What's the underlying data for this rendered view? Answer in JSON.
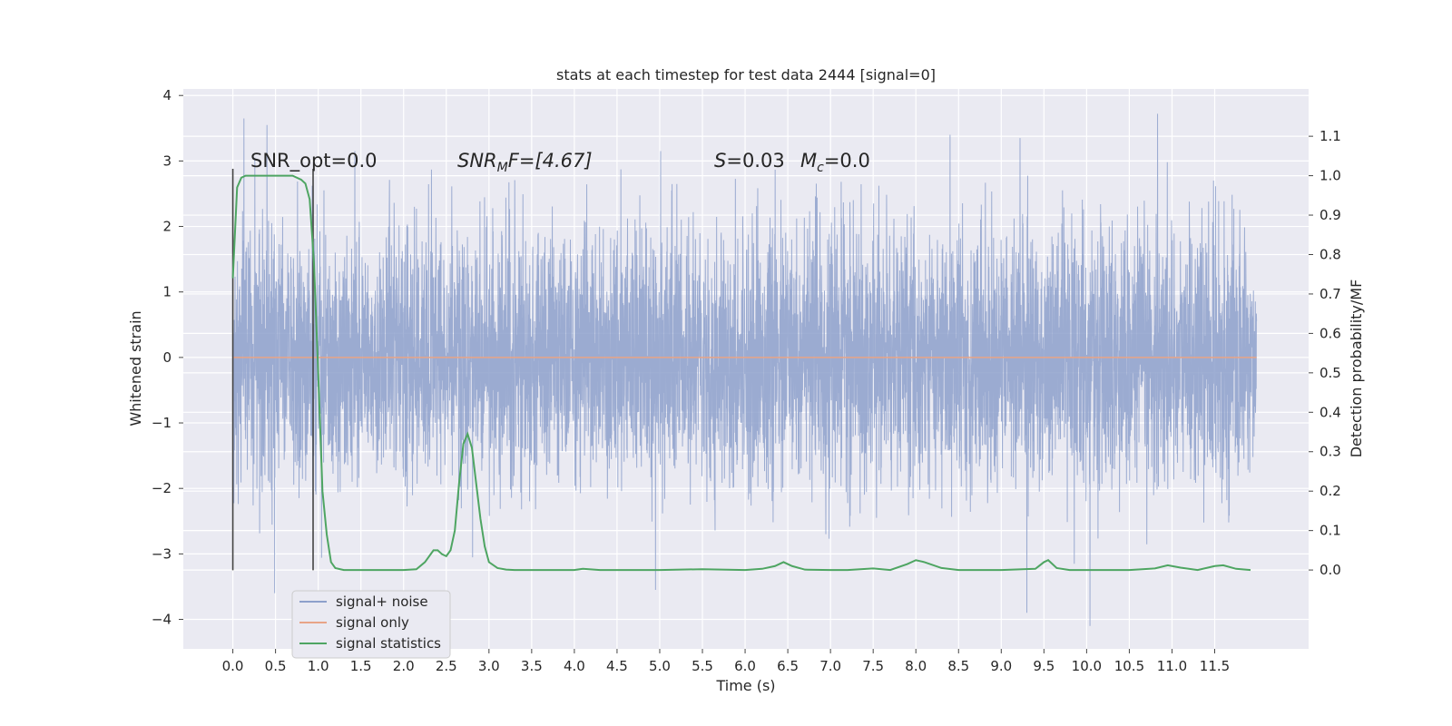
{
  "chart_data": {
    "type": "line",
    "title": "stats at each timestep for test data 2444 [signal=0]",
    "xlabel": "Time (s)",
    "ylabel": "Whitened strain",
    "y2label": "Detection probability/MF",
    "xlim": [
      -0.58,
      12.6
    ],
    "ylim": [
      -4.45,
      4.1
    ],
    "y2lim": [
      -0.2,
      1.22
    ],
    "x_ticks": [
      "0.0",
      "0.5",
      "1.0",
      "1.5",
      "2.0",
      "2.5",
      "3.0",
      "3.5",
      "4.0",
      "4.5",
      "5.0",
      "5.5",
      "6.0",
      "6.5",
      "7.0",
      "7.5",
      "8.0",
      "8.5",
      "9.0",
      "9.5",
      "10.0",
      "10.5",
      "11.0",
      "11.5"
    ],
    "y_ticks": [
      "4",
      "3",
      "2",
      "1",
      "0",
      "−1",
      "−2",
      "−3",
      "−4"
    ],
    "y2_ticks": [
      "1.1",
      "1.0",
      "0.9",
      "0.8",
      "0.7",
      "0.6",
      "0.5",
      "0.4",
      "0.3",
      "0.2",
      "0.1",
      "0.0"
    ],
    "grid": true,
    "legend_placement": "lower-left",
    "annotations": {
      "snr_opt": "SNR_opt=0.0",
      "snr_mf_prefix": "SNR",
      "snr_mf_sub": "M",
      "snr_mf_suffix": "F=[4.67]",
      "s_sym": "S",
      "s_val": "=0.03",
      "mc_sym": "M",
      "mc_sub": "c",
      "mc_val": "=0.0"
    },
    "series": [
      {
        "name": "signal+ noise",
        "color": "#8da0cb",
        "t_start": 0.0,
        "t_end": 11.99,
        "band_typical": [
          -1.5,
          1.5
        ],
        "notable_peaks": [
          {
            "x": 0.13,
            "y": 3.65
          },
          {
            "x": 0.4,
            "y": 3.55
          },
          {
            "x": 0.49,
            "y": -3.6
          },
          {
            "x": 4.95,
            "y": -3.55
          },
          {
            "x": 9.3,
            "y": -3.9
          },
          {
            "x": 10.04,
            "y": -4.1
          },
          {
            "x": 10.83,
            "y": 3.72
          },
          {
            "x": 8.4,
            "y": 3.4
          },
          {
            "x": 9.22,
            "y": 3.35
          }
        ]
      },
      {
        "name": "signal only",
        "color": "#e8a487",
        "x": [
          0.0,
          11.99
        ],
        "y": [
          0.0,
          0.0
        ]
      },
      {
        "name": "signal statistics",
        "color": "#4ea562",
        "axis": "right",
        "x": [
          0.0,
          0.05,
          0.1,
          0.15,
          0.2,
          0.3,
          0.5,
          0.6,
          0.7,
          0.8,
          0.85,
          0.9,
          0.95,
          1.0,
          1.05,
          1.1,
          1.15,
          1.2,
          1.3,
          1.5,
          2.0,
          2.15,
          2.25,
          2.35,
          2.4,
          2.45,
          2.5,
          2.55,
          2.6,
          2.65,
          2.7,
          2.75,
          2.8,
          2.85,
          2.9,
          2.95,
          3.0,
          3.1,
          3.2,
          3.3,
          3.5,
          4.0,
          4.1,
          4.3,
          4.5,
          5.0,
          5.5,
          6.0,
          6.2,
          6.35,
          6.45,
          6.55,
          6.7,
          7.0,
          7.2,
          7.5,
          7.7,
          7.9,
          8.0,
          8.1,
          8.3,
          8.5,
          9.0,
          9.4,
          9.5,
          9.55,
          9.65,
          9.8,
          10.0,
          10.5,
          10.8,
          10.95,
          11.1,
          11.3,
          11.5,
          11.6,
          11.75,
          11.92
        ],
        "y": [
          0.74,
          0.97,
          0.995,
          1.0,
          1.0,
          1.0,
          1.0,
          1.0,
          1.0,
          0.99,
          0.98,
          0.94,
          0.78,
          0.5,
          0.2,
          0.09,
          0.02,
          0.005,
          0.0,
          0.0,
          0.0,
          0.002,
          0.02,
          0.05,
          0.05,
          0.04,
          0.035,
          0.05,
          0.1,
          0.22,
          0.32,
          0.345,
          0.31,
          0.22,
          0.13,
          0.06,
          0.02,
          0.005,
          0.001,
          0.0,
          0.0,
          0.0,
          0.003,
          0.0,
          0.0,
          0.0,
          0.002,
          0.0,
          0.003,
          0.01,
          0.02,
          0.01,
          0.001,
          0.0,
          0.0,
          0.004,
          0.0,
          0.015,
          0.025,
          0.02,
          0.005,
          0.0,
          0.0,
          0.003,
          0.02,
          0.025,
          0.005,
          0.0,
          0.0,
          0.0,
          0.004,
          0.012,
          0.006,
          0.0,
          0.01,
          0.012,
          0.003,
          0.0
        ]
      }
    ],
    "vlines": [
      {
        "x": 0.0,
        "ymin": -3.25,
        "ymax": 2.88,
        "color": "#444444"
      },
      {
        "x": 0.94,
        "ymin": -3.25,
        "ymax": 2.88,
        "color": "#444444"
      }
    ]
  }
}
